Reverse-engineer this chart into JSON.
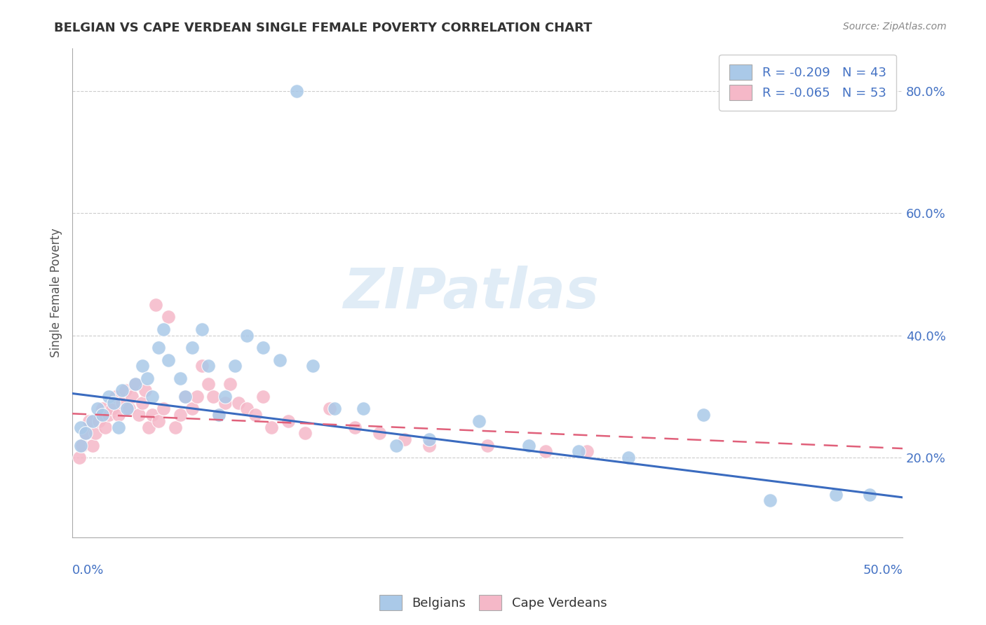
{
  "title": "BELGIAN VS CAPE VERDEAN SINGLE FEMALE POVERTY CORRELATION CHART",
  "source": "Source: ZipAtlas.com",
  "ylabel": "Single Female Poverty",
  "legend_labels": [
    "Belgians",
    "Cape Verdeans"
  ],
  "legend_r": [
    -0.209,
    -0.065
  ],
  "legend_n": [
    43,
    53
  ],
  "watermark": "ZIPatlas",
  "blue_dot_color": "#aac9e8",
  "pink_dot_color": "#f5b8c8",
  "blue_line_color": "#3a6bbf",
  "pink_line_color": "#e0607a",
  "legend_blue_color": "#aac9e8",
  "legend_pink_color": "#f5b8c8",
  "legend_text_color": "#4472c4",
  "bg_color": "#ffffff",
  "grid_color": "#cccccc",
  "right_ytick_labels": [
    "80.0%",
    "60.0%",
    "40.0%",
    "20.0%"
  ],
  "right_ytick_values": [
    0.8,
    0.6,
    0.4,
    0.2
  ],
  "xlim": [
    0.0,
    0.5
  ],
  "ylim": [
    0.07,
    0.87
  ],
  "belgians_x": [
    0.135,
    0.005,
    0.005,
    0.008,
    0.012,
    0.015,
    0.018,
    0.022,
    0.025,
    0.028,
    0.03,
    0.033,
    0.038,
    0.042,
    0.045,
    0.048,
    0.052,
    0.055,
    0.058,
    0.065,
    0.068,
    0.072,
    0.078,
    0.082,
    0.088,
    0.092,
    0.098,
    0.105,
    0.115,
    0.125,
    0.145,
    0.158,
    0.175,
    0.195,
    0.215,
    0.245,
    0.275,
    0.305,
    0.335,
    0.38,
    0.42,
    0.46,
    0.48
  ],
  "belgians_y": [
    0.8,
    0.25,
    0.22,
    0.24,
    0.26,
    0.28,
    0.27,
    0.3,
    0.29,
    0.25,
    0.31,
    0.28,
    0.32,
    0.35,
    0.33,
    0.3,
    0.38,
    0.41,
    0.36,
    0.33,
    0.3,
    0.38,
    0.41,
    0.35,
    0.27,
    0.3,
    0.35,
    0.4,
    0.38,
    0.36,
    0.35,
    0.28,
    0.28,
    0.22,
    0.23,
    0.26,
    0.22,
    0.21,
    0.2,
    0.27,
    0.13,
    0.14,
    0.14
  ],
  "capeverdeans_x": [
    0.004,
    0.006,
    0.008,
    0.01,
    0.012,
    0.014,
    0.016,
    0.018,
    0.02,
    0.022,
    0.024,
    0.026,
    0.028,
    0.03,
    0.032,
    0.034,
    0.036,
    0.038,
    0.04,
    0.042,
    0.044,
    0.046,
    0.048,
    0.05,
    0.052,
    0.055,
    0.058,
    0.062,
    0.065,
    0.068,
    0.072,
    0.075,
    0.078,
    0.082,
    0.085,
    0.088,
    0.092,
    0.095,
    0.1,
    0.105,
    0.11,
    0.115,
    0.12,
    0.13,
    0.14,
    0.155,
    0.17,
    0.185,
    0.2,
    0.215,
    0.25,
    0.285,
    0.31
  ],
  "capeverdeans_y": [
    0.2,
    0.22,
    0.24,
    0.26,
    0.22,
    0.24,
    0.26,
    0.28,
    0.25,
    0.27,
    0.28,
    0.3,
    0.27,
    0.29,
    0.31,
    0.28,
    0.3,
    0.32,
    0.27,
    0.29,
    0.31,
    0.25,
    0.27,
    0.45,
    0.26,
    0.28,
    0.43,
    0.25,
    0.27,
    0.3,
    0.28,
    0.3,
    0.35,
    0.32,
    0.3,
    0.27,
    0.29,
    0.32,
    0.29,
    0.28,
    0.27,
    0.3,
    0.25,
    0.26,
    0.24,
    0.28,
    0.25,
    0.24,
    0.23,
    0.22,
    0.22,
    0.21,
    0.21
  ]
}
